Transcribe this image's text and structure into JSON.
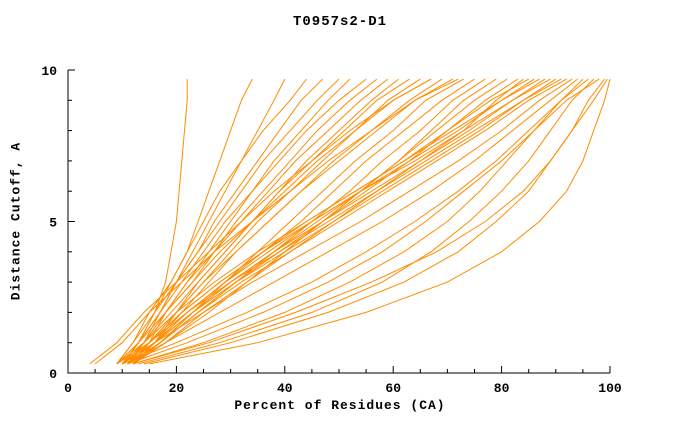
{
  "title": "T0957s2-D1",
  "chart_data": {
    "type": "line",
    "title": "T0957s2-D1",
    "xlabel": "Percent of Residues (CA)",
    "ylabel": "Distance Cutoff, A",
    "xlim": [
      0,
      100
    ],
    "ylim": [
      0,
      10
    ],
    "x_major_ticks": [
      0,
      20,
      40,
      60,
      80,
      100
    ],
    "x_minor_step": 5,
    "y_major_ticks": [
      0,
      5,
      10
    ],
    "y_minor_step": 1,
    "grid": false,
    "legend": "none",
    "line_color": "#ff8c00",
    "axis_color": "#000000",
    "y_samples": [
      0.3,
      1,
      2,
      3,
      4,
      5,
      6,
      7,
      8,
      9,
      9.7
    ],
    "series": [
      [
        10,
        13,
        16,
        18,
        19,
        20,
        20.5,
        21,
        21.5,
        22,
        22
      ],
      [
        9,
        12,
        16,
        19,
        22,
        24,
        26,
        28,
        30,
        32,
        34
      ],
      [
        10,
        13,
        17,
        20,
        23,
        26,
        29,
        32,
        35,
        38,
        40
      ],
      [
        9,
        12,
        15,
        19,
        22,
        25,
        28,
        32,
        36,
        41,
        44
      ],
      [
        11,
        14,
        17,
        20,
        24,
        27,
        31,
        35,
        39,
        43,
        47
      ],
      [
        10,
        13,
        16,
        20,
        24,
        28,
        32,
        36,
        41,
        46,
        50
      ],
      [
        12,
        15,
        18,
        22,
        26,
        30,
        34,
        38,
        43,
        48,
        52
      ],
      [
        9,
        13,
        17,
        21,
        25,
        29,
        34,
        39,
        44,
        50,
        55
      ],
      [
        11,
        14,
        18,
        22,
        27,
        31,
        36,
        41,
        46,
        52,
        57
      ],
      [
        10,
        14,
        18,
        23,
        27,
        32,
        37,
        42,
        48,
        54,
        59
      ],
      [
        12,
        16,
        20,
        24,
        29,
        34,
        39,
        44,
        50,
        56,
        61
      ],
      [
        10,
        14,
        19,
        24,
        29,
        34,
        39,
        45,
        51,
        57,
        63
      ],
      [
        11,
        15,
        20,
        25,
        30,
        35,
        41,
        47,
        53,
        59,
        65
      ],
      [
        9,
        13,
        18,
        23,
        28,
        34,
        40,
        46,
        53,
        60,
        67
      ],
      [
        12,
        16,
        21,
        26,
        31,
        37,
        43,
        49,
        56,
        63,
        69
      ],
      [
        10,
        15,
        20,
        25,
        31,
        37,
        43,
        50,
        57,
        64,
        71
      ],
      [
        12,
        17,
        23,
        29,
        35,
        41,
        47,
        53,
        60,
        66,
        73
      ],
      [
        10,
        16,
        22,
        29,
        36,
        43,
        49,
        55,
        62,
        69,
        75
      ],
      [
        11,
        17,
        24,
        31,
        38,
        45,
        52,
        58,
        65,
        71,
        77
      ],
      [
        12,
        18,
        26,
        33,
        40,
        47,
        54,
        61,
        67,
        73,
        79
      ],
      [
        10,
        16,
        23,
        30,
        38,
        46,
        54,
        61,
        68,
        75,
        81
      ],
      [
        11,
        17,
        24,
        31,
        39,
        47,
        55,
        63,
        70,
        77,
        83
      ],
      [
        12,
        18,
        25,
        33,
        41,
        49,
        57,
        65,
        73,
        79,
        84
      ],
      [
        10,
        15,
        21,
        28,
        36,
        44,
        53,
        62,
        70,
        78,
        85
      ],
      [
        11,
        16,
        22,
        29,
        37,
        45,
        54,
        63,
        72,
        80,
        86
      ],
      [
        9,
        14,
        20,
        27,
        35,
        44,
        53,
        62,
        71,
        80,
        87
      ],
      [
        12,
        17,
        23,
        30,
        38,
        47,
        56,
        65,
        74,
        82,
        88
      ],
      [
        10,
        15,
        21,
        28,
        36,
        45,
        54,
        64,
        73,
        82,
        89
      ],
      [
        11,
        16,
        23,
        31,
        40,
        49,
        58,
        67,
        76,
        84,
        90
      ],
      [
        9,
        15,
        22,
        30,
        39,
        48,
        57,
        66,
        75,
        84,
        91
      ],
      [
        12,
        17,
        24,
        32,
        41,
        50,
        59,
        68,
        77,
        85,
        92
      ],
      [
        10,
        16,
        25,
        34,
        44,
        54,
        63,
        72,
        80,
        87,
        93
      ],
      [
        11,
        18,
        28,
        38,
        48,
        58,
        67,
        75,
        82,
        89,
        94
      ],
      [
        12,
        25,
        40,
        52,
        62,
        70,
        76,
        81,
        86,
        91,
        95
      ],
      [
        10,
        20,
        33,
        45,
        55,
        64,
        72,
        79,
        85,
        91,
        96
      ],
      [
        13,
        28,
        45,
        58,
        67,
        74,
        80,
        85,
        89,
        93,
        97
      ],
      [
        11,
        22,
        36,
        48,
        58,
        66,
        73,
        80,
        86,
        92,
        98
      ],
      [
        14,
        30,
        48,
        62,
        72,
        79,
        85,
        89,
        93,
        96,
        99
      ],
      [
        12,
        26,
        42,
        56,
        68,
        77,
        84,
        89,
        93,
        97,
        99.5
      ],
      [
        15,
        35,
        55,
        70,
        80,
        87,
        92,
        95,
        97,
        99,
        100
      ],
      [
        4,
        9,
        14,
        20,
        26,
        32,
        38,
        45,
        52,
        60,
        67
      ],
      [
        5,
        10,
        15,
        21,
        27,
        34,
        41,
        48,
        56,
        64,
        72
      ]
    ]
  }
}
